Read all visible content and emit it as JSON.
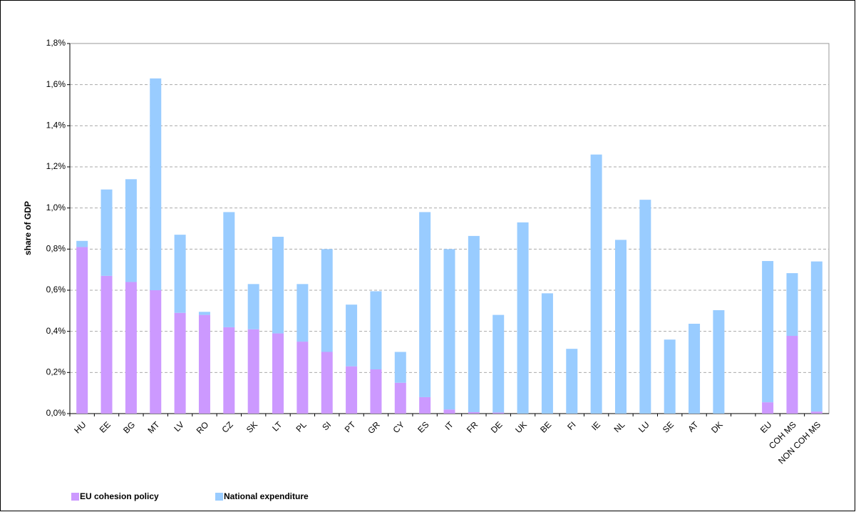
{
  "chart_data": {
    "type": "stacked-bar",
    "y_label": "share of GDP",
    "categories": [
      "HU",
      "EE",
      "BG",
      "MT",
      "LV",
      "RO",
      "CZ",
      "SK",
      "LT",
      "PL",
      "SI",
      "PT",
      "GR",
      "CY",
      "ES",
      "IT",
      "FR",
      "DE",
      "UK",
      "BE",
      "FI",
      "IE",
      "NL",
      "LU",
      "SE",
      "AT",
      "DK",
      null,
      "EU",
      "COH MS",
      "NON COH MS"
    ],
    "series": [
      {
        "name": "EU cohesion policy",
        "color": "#cc99ff",
        "values": [
          0.81,
          0.67,
          0.64,
          0.6,
          0.49,
          0.48,
          0.42,
          0.41,
          0.39,
          0.35,
          0.3,
          0.23,
          0.215,
          0.15,
          0.08,
          0.02,
          0.007,
          0.005,
          0,
          0,
          0,
          0,
          0,
          0,
          0,
          0,
          0,
          null,
          0.055,
          0.378,
          0.01
        ]
      },
      {
        "name": "National expenditure",
        "color": "#99ccff",
        "values": [
          0.03,
          0.42,
          0.5,
          1.03,
          0.38,
          0.015,
          0.56,
          0.22,
          0.47,
          0.28,
          0.5,
          0.3,
          0.38,
          0.15,
          0.9,
          0.78,
          0.857,
          0.475,
          0.93,
          0.585,
          0.315,
          1.26,
          0.845,
          1.04,
          0.36,
          0.437,
          0.503,
          null,
          0.687,
          0.305,
          0.73
        ]
      }
    ],
    "ylim": [
      0,
      1.8
    ],
    "yticks": [
      {
        "value": 0,
        "label": "0,0%"
      },
      {
        "value": 0.2,
        "label": "0,2%"
      },
      {
        "value": 0.4,
        "label": "0,4%"
      },
      {
        "value": 0.6,
        "label": "0,6%"
      },
      {
        "value": 0.8,
        "label": "0,8%"
      },
      {
        "value": 1.0,
        "label": "1,0%"
      },
      {
        "value": 1.2,
        "label": "1,2%"
      },
      {
        "value": 1.4,
        "label": "1,4%"
      },
      {
        "value": 1.6,
        "label": "1,6%"
      },
      {
        "value": 1.8,
        "label": "1,8%"
      }
    ],
    "grid": true,
    "legend": "bottom-left"
  }
}
